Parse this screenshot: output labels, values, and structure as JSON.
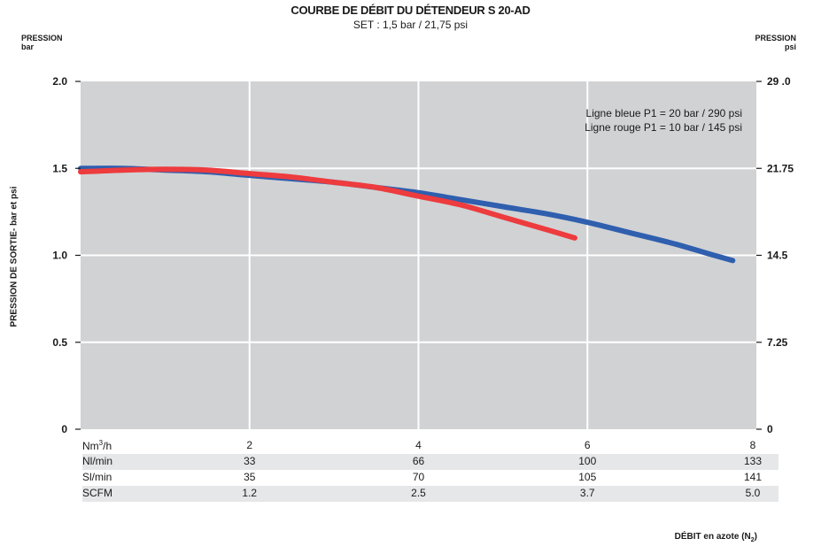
{
  "header": {
    "title": "COURBE DE DÉBIT DU DÉTENDEUR S 20-AD",
    "subtitle": "SET : 1,5 bar / 21,75 psi",
    "left_unit_line1": "PRESSION",
    "left_unit_line2": "bar",
    "right_unit_line1": "PRESSION",
    "right_unit_line2": "psi"
  },
  "axes": {
    "ylabel": "PRESSION DE SORTIE- bar et psi",
    "xlabel_main": "DÉBIT en azote (N",
    "xlabel_sub": "2",
    "xlabel_end": ")"
  },
  "legend": {
    "line1": "Ligne bleue P1 = 20 bar / 290 psi",
    "line2": "Ligne rouge P1 = 10 bar / 145 psi"
  },
  "colors": {
    "blue": "#2f5fae",
    "red": "#ed3b3e",
    "plot_bg": "#d1d2d4",
    "grid": "#ffffff"
  },
  "chart_data": {
    "type": "line",
    "title": "COURBE DE DÉBIT DU DÉTENDEUR S 20-AD",
    "subtitle": "SET : 1,5 bar / 21,75 psi",
    "xlabel": "DÉBIT en azote (N2)",
    "ylabel": "PRESSION DE SORTIE- bar et psi",
    "xlim": [
      0,
      8
    ],
    "ylim": [
      0,
      2.0
    ],
    "y_ticks_left": [
      "0",
      "0.5",
      "1.0",
      "1.5",
      "2.0"
    ],
    "y_ticks_right": [
      "0",
      "7.25",
      "14.5",
      "21.75",
      "29 .0"
    ],
    "x_ticks": [
      2,
      4,
      6,
      8
    ],
    "grid": true,
    "legend_position": "top-right",
    "series": [
      {
        "name": "Ligne bleue P1 = 20 bar / 290 psi",
        "color": "#2f5fae",
        "x": [
          0,
          0.5,
          1,
          1.5,
          2,
          2.5,
          3,
          3.5,
          4,
          4.5,
          5,
          5.5,
          6,
          6.5,
          7,
          7.5,
          7.72
        ],
        "y": [
          1.5,
          1.5,
          1.49,
          1.48,
          1.46,
          1.44,
          1.42,
          1.39,
          1.36,
          1.32,
          1.28,
          1.24,
          1.19,
          1.13,
          1.07,
          1.0,
          0.97
        ]
      },
      {
        "name": "Ligne rouge P1 = 10 bar / 145 psi",
        "color": "#ed3b3e",
        "x": [
          0,
          0.5,
          1,
          1.5,
          2,
          2.5,
          3,
          3.5,
          4,
          4.5,
          5,
          5.5,
          5.85
        ],
        "y": [
          1.48,
          1.49,
          1.495,
          1.49,
          1.47,
          1.45,
          1.42,
          1.39,
          1.34,
          1.29,
          1.22,
          1.15,
          1.1
        ]
      }
    ]
  },
  "flow_table": {
    "rows": [
      {
        "label": "Nm",
        "label_sup": "3",
        "label_suffix": "/h",
        "values": [
          "2",
          "4",
          "6",
          "8"
        ]
      },
      {
        "label": "Nl/min",
        "label_sup": "",
        "label_suffix": "",
        "values": [
          "33",
          "66",
          "100",
          "133"
        ]
      },
      {
        "label": "Sl/min",
        "label_sup": "",
        "label_suffix": "",
        "values": [
          "35",
          "70",
          "105",
          "141"
        ]
      },
      {
        "label": "SCFM",
        "label_sup": "",
        "label_suffix": "",
        "values": [
          "1.2",
          "2.5",
          "3.7",
          "5.0"
        ]
      }
    ]
  }
}
